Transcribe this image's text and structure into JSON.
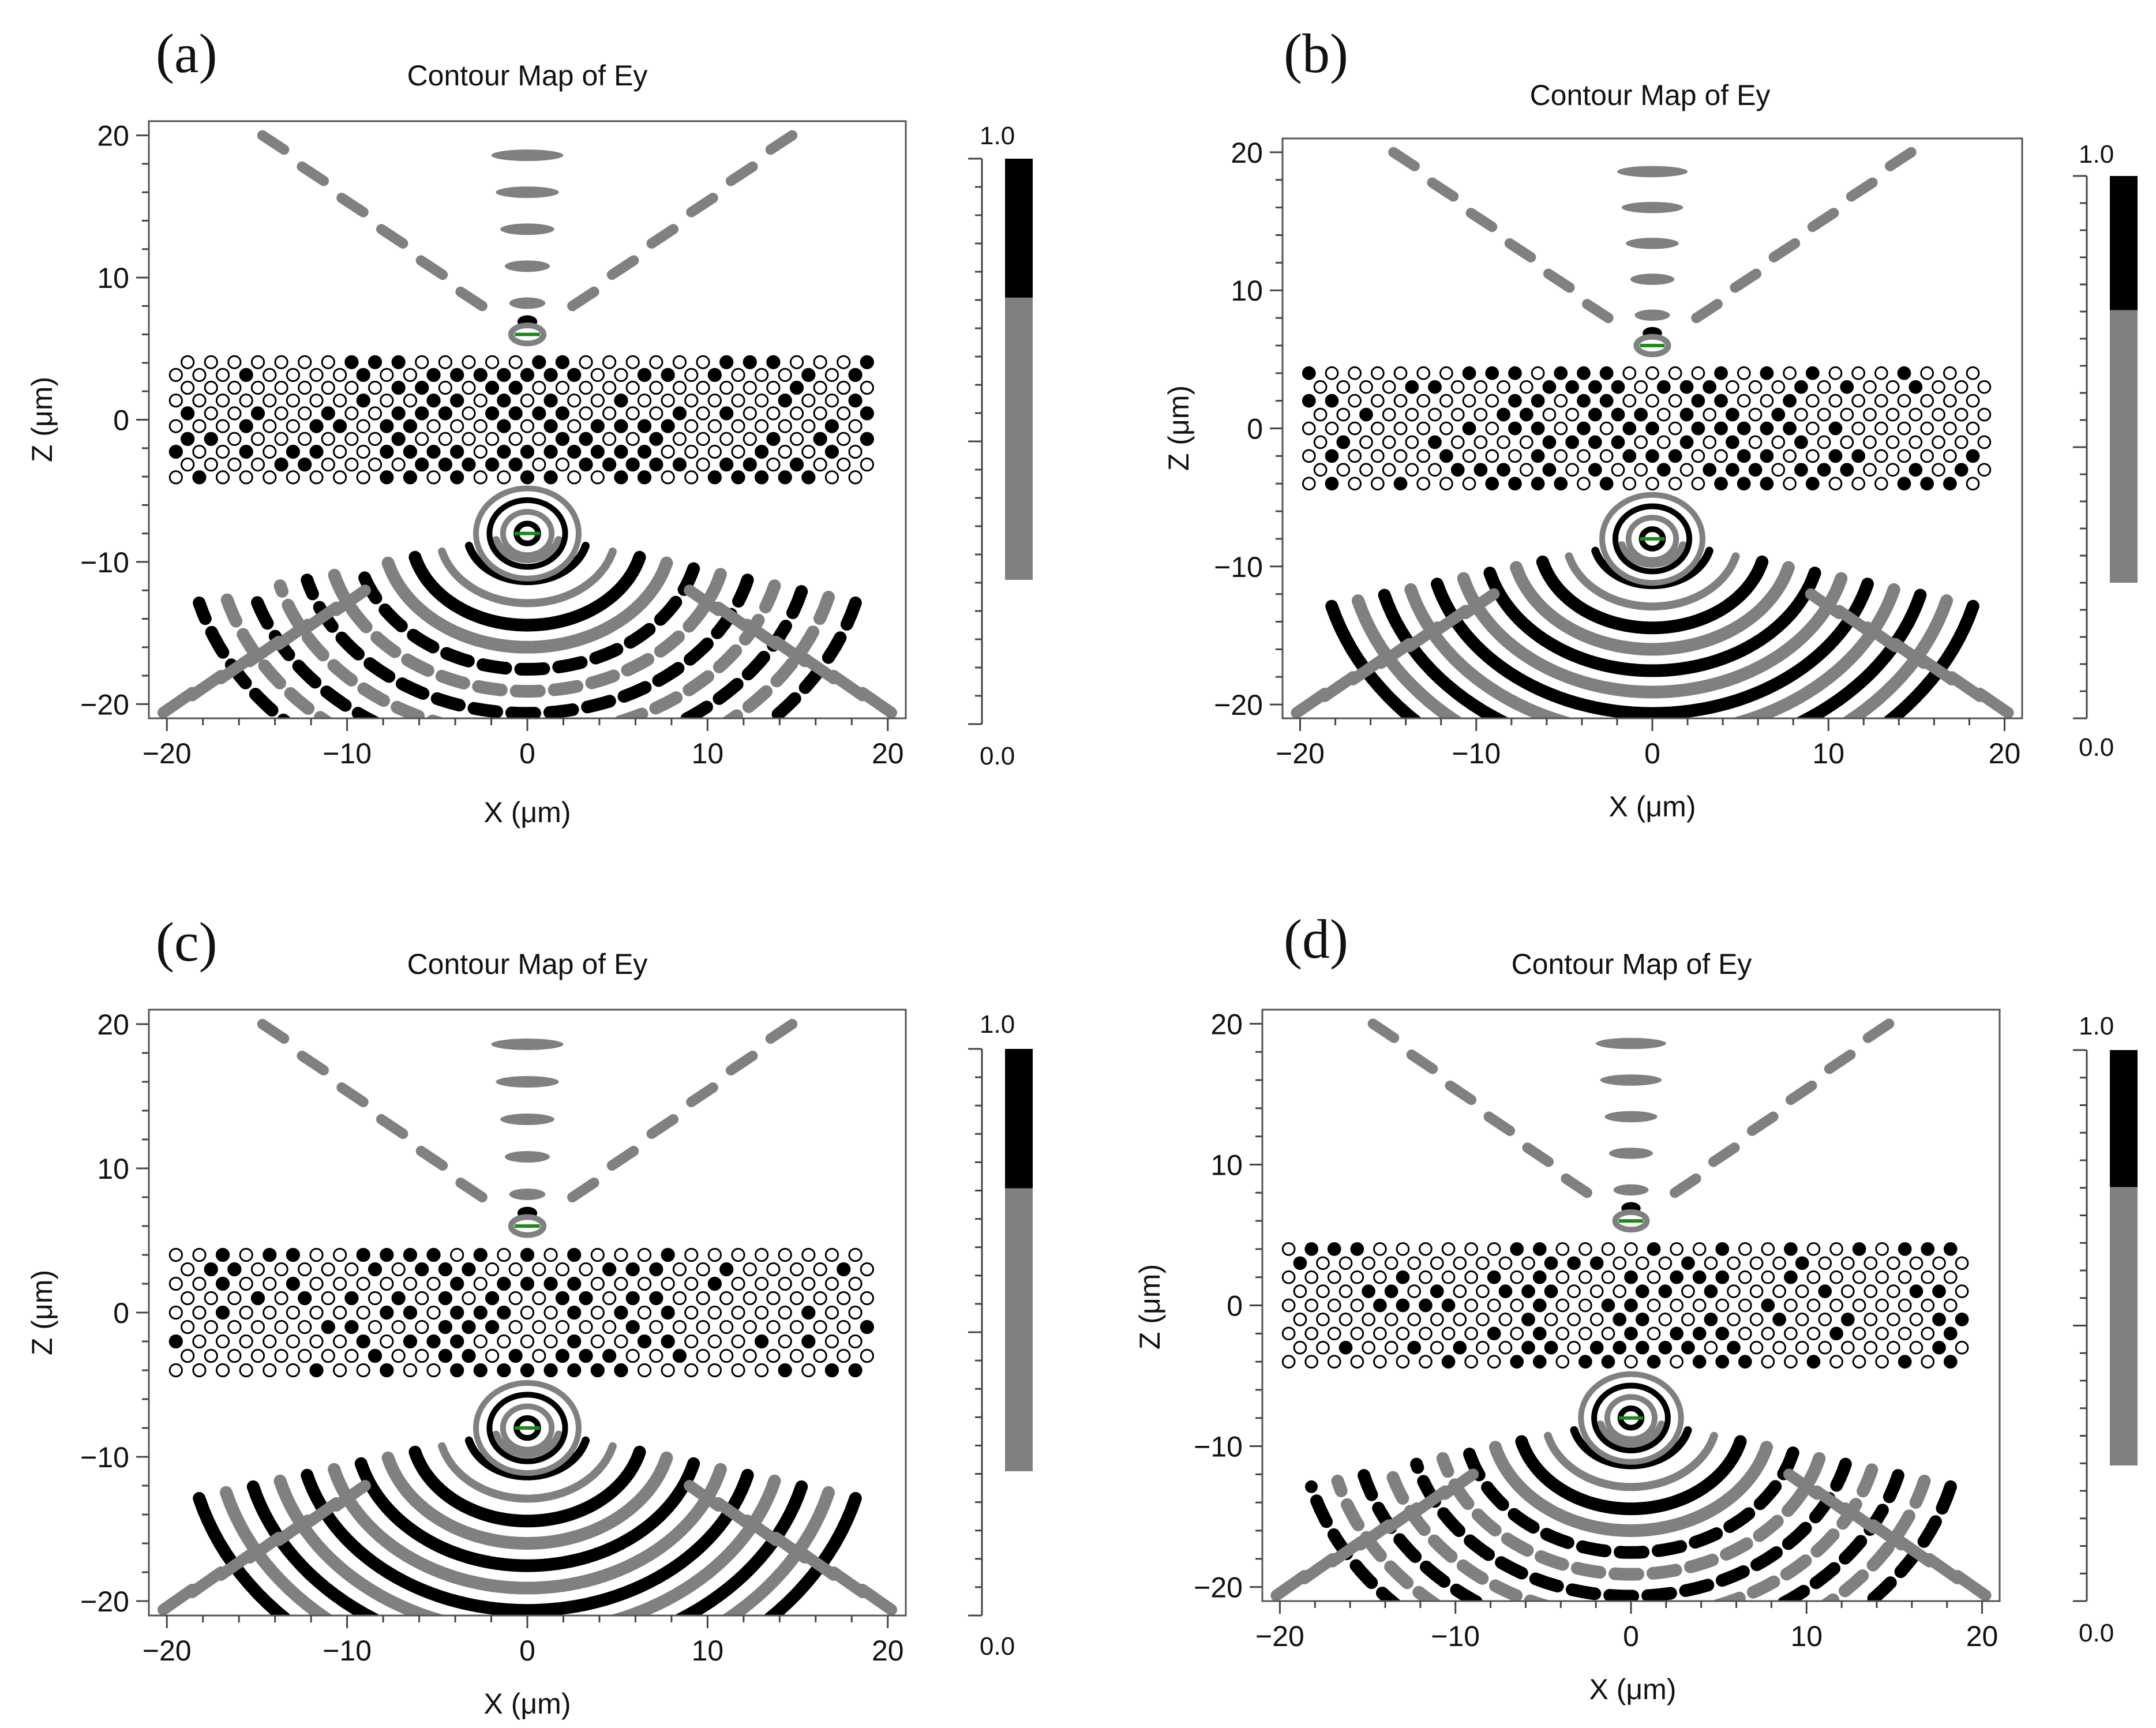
{
  "figure": {
    "panels": [
      {
        "id": "a",
        "label": "(a)",
        "title": "Contour Map of Ey"
      },
      {
        "id": "b",
        "label": "(b)",
        "title": "Contour Map of Ey"
      },
      {
        "id": "c",
        "label": "(c)",
        "title": "Contour Map of Ey"
      },
      {
        "id": "d",
        "label": "(d)",
        "title": "Contour Map of Ey"
      }
    ]
  },
  "chart_data": [
    {
      "type": "heatmap",
      "panel": "(a)",
      "title": "Contour Map of Ey",
      "xlabel": "X (μm)",
      "ylabel": "Z (μm)",
      "xlim": [
        -21,
        21
      ],
      "ylim": [
        -21,
        21
      ],
      "xticks": [
        -20,
        -10,
        0,
        10,
        20
      ],
      "yticks": [
        -20,
        -10,
        0,
        10,
        20
      ],
      "xtick_labels": [
        "−20",
        "−10",
        "0",
        "10",
        "20"
      ],
      "ytick_labels": [
        "−20",
        "−10",
        "0",
        "10",
        "20"
      ],
      "colorbar": {
        "min": 0.0,
        "max": 1.0,
        "min_label": "0.0",
        "max_label": "1.0",
        "colors": [
          "#ffffff",
          "#808080",
          "#000000"
        ]
      },
      "source_z": -8,
      "image_z": 6,
      "crystal_z_range": [
        -4.5,
        4.5
      ],
      "crystal_x_range": [
        -19.5,
        19.5
      ]
    },
    {
      "type": "heatmap",
      "panel": "(b)",
      "title": "Contour Map of Ey",
      "xlabel": "X (μm)",
      "ylabel": "Z (μm)",
      "xlim": [
        -21,
        21
      ],
      "ylim": [
        -21,
        21
      ],
      "xticks": [
        -20,
        -10,
        0,
        10,
        20
      ],
      "yticks": [
        -20,
        -10,
        0,
        10,
        20
      ],
      "xtick_labels": [
        "−20",
        "−10",
        "0",
        "10",
        "20"
      ],
      "ytick_labels": [
        "−20",
        "−10",
        "0",
        "10",
        "20"
      ],
      "colorbar": {
        "min": 0.0,
        "max": 1.0,
        "min_label": "0.0",
        "max_label": "1.0",
        "colors": [
          "#ffffff",
          "#808080",
          "#000000"
        ]
      },
      "source_z": -8,
      "image_z": 6,
      "crystal_z_range": [
        -4.5,
        4.5
      ],
      "crystal_x_range": [
        -19.5,
        19.5
      ]
    },
    {
      "type": "heatmap",
      "panel": "(c)",
      "title": "Contour Map of Ey",
      "xlabel": "X (μm)",
      "ylabel": "Z (μm)",
      "xlim": [
        -21,
        21
      ],
      "ylim": [
        -21,
        21
      ],
      "xticks": [
        -20,
        -10,
        0,
        10,
        20
      ],
      "yticks": [
        -20,
        -10,
        0,
        10,
        20
      ],
      "xtick_labels": [
        "−20",
        "−10",
        "0",
        "10",
        "20"
      ],
      "ytick_labels": [
        "−20",
        "−10",
        "0",
        "10",
        "20"
      ],
      "colorbar": {
        "min": 0.0,
        "max": 1.0,
        "min_label": "0.0",
        "max_label": "1.0",
        "colors": [
          "#ffffff",
          "#808080",
          "#000000"
        ]
      },
      "source_z": -8,
      "image_z": 6,
      "crystal_z_range": [
        -4.5,
        4.5
      ],
      "crystal_x_range": [
        -19.5,
        19.5
      ]
    },
    {
      "type": "heatmap",
      "panel": "(d)",
      "title": "Contour Map of Ey",
      "xlabel": "X (μm)",
      "ylabel": "Z (μm)",
      "xlim": [
        -21,
        21
      ],
      "ylim": [
        -21,
        21
      ],
      "xticks": [
        -20,
        -10,
        0,
        10,
        20
      ],
      "yticks": [
        -20,
        -10,
        0,
        10,
        20
      ],
      "xtick_labels": [
        "−20",
        "−10",
        "0",
        "10",
        "20"
      ],
      "ytick_labels": [
        "−20",
        "−10",
        "0",
        "10",
        "20"
      ],
      "colorbar": {
        "min": 0.0,
        "max": 1.0,
        "min_label": "0.0",
        "max_label": "1.0",
        "colors": [
          "#ffffff",
          "#808080",
          "#000000"
        ]
      },
      "source_z": -8,
      "image_z": 6,
      "crystal_z_range": [
        -4.5,
        4.5
      ],
      "crystal_x_range": [
        -19.5,
        19.5
      ]
    }
  ]
}
